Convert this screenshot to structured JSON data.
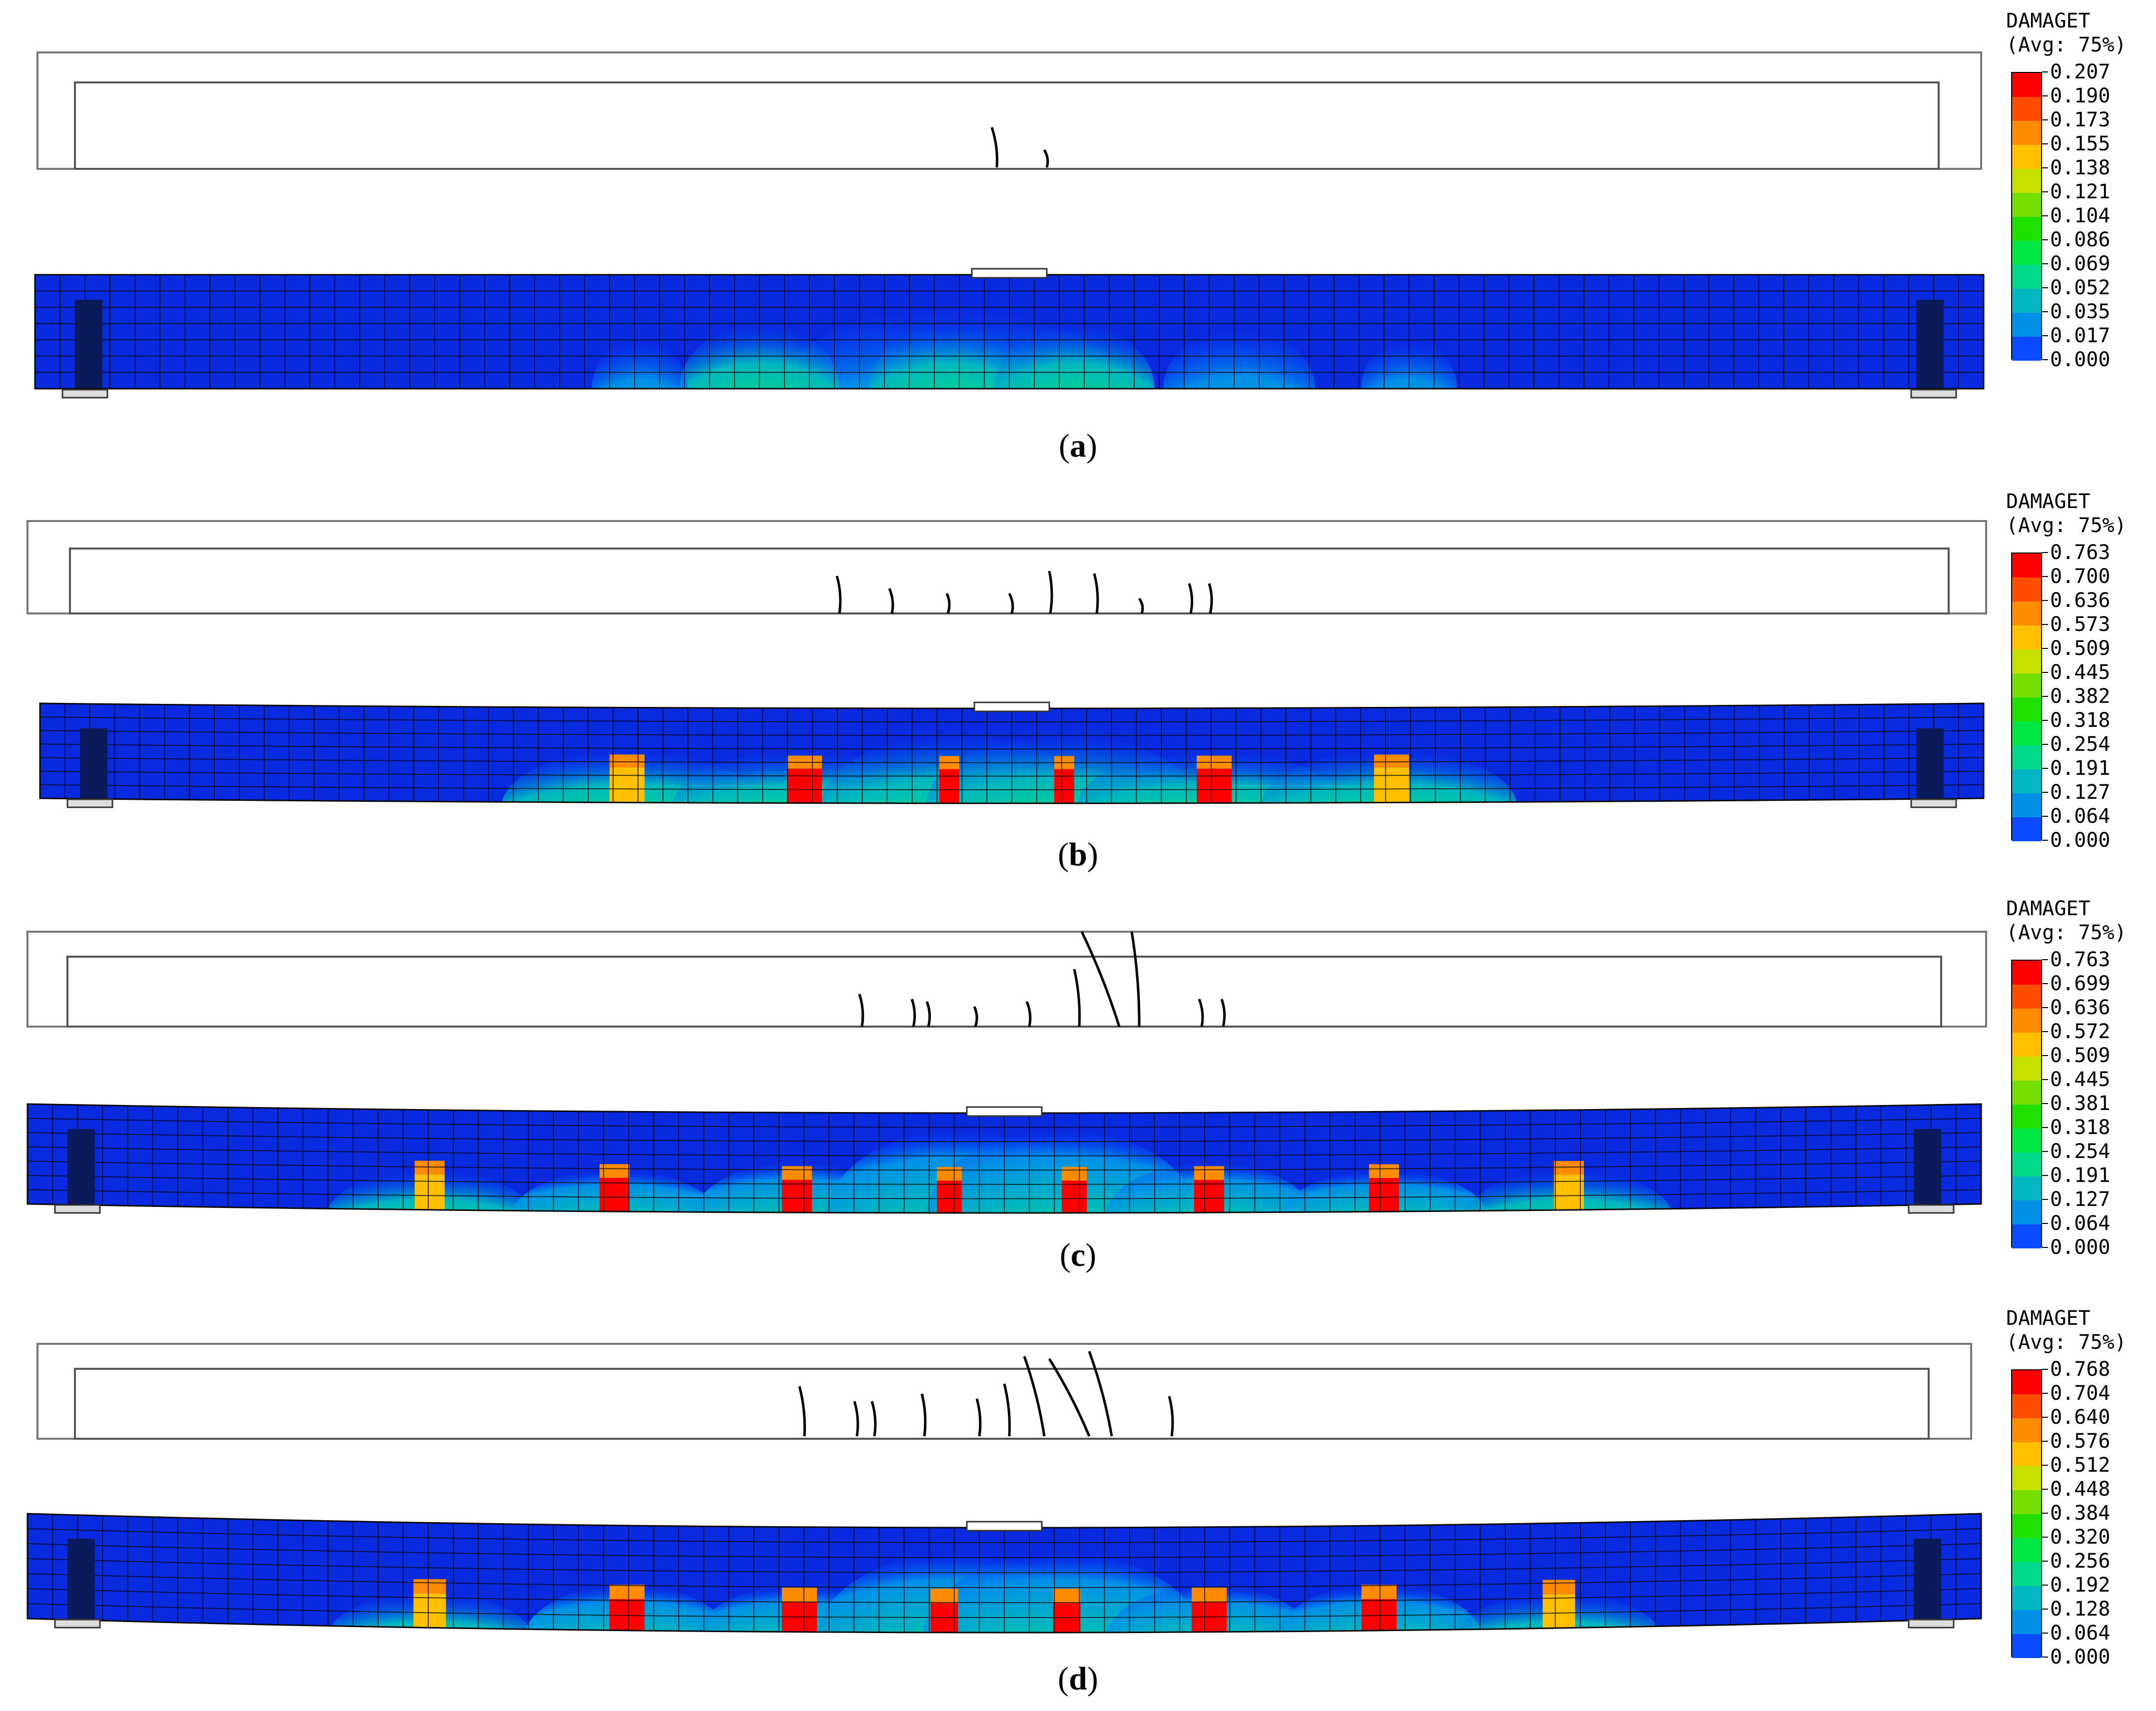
{
  "colors": {
    "contour": [
      "#0000ff",
      "#0a4bff",
      "#0090e8",
      "#00b6c0",
      "#00d98a",
      "#00e845",
      "#20e000",
      "#75e000",
      "#c8e000",
      "#ffc000",
      "#ff8c00",
      "#ff4d00",
      "#ff0000"
    ],
    "beam_base": "#0a2ae0",
    "mesh": "#0a0a0a",
    "crack": "#000000"
  },
  "panels": [
    {
      "id": "a",
      "caption_letter": "a",
      "legend": {
        "title": "DAMAGET",
        "subtitle": "(Avg: 75%)",
        "values": [
          "0.207",
          "0.190",
          "0.173",
          "0.155",
          "0.138",
          "0.121",
          "0.104",
          "0.086",
          "0.069",
          "0.052",
          "0.035",
          "0.017",
          "0.000"
        ]
      }
    },
    {
      "id": "b",
      "caption_letter": "b",
      "legend": {
        "title": "DAMAGET",
        "subtitle": "(Avg: 75%)",
        "values": [
          "0.763",
          "0.700",
          "0.636",
          "0.573",
          "0.509",
          "0.445",
          "0.382",
          "0.318",
          "0.254",
          "0.191",
          "0.127",
          "0.064",
          "0.000"
        ]
      }
    },
    {
      "id": "c",
      "caption_letter": "c",
      "legend": {
        "title": "DAMAGET",
        "subtitle": "(Avg: 75%)",
        "values": [
          "0.763",
          "0.699",
          "0.636",
          "0.572",
          "0.509",
          "0.445",
          "0.381",
          "0.318",
          "0.254",
          "0.191",
          "0.127",
          "0.064",
          "0.000"
        ]
      }
    },
    {
      "id": "d",
      "caption_letter": "d",
      "legend": {
        "title": "DAMAGET",
        "subtitle": "(Avg: 75%)",
        "values": [
          "0.768",
          "0.704",
          "0.640",
          "0.576",
          "0.512",
          "0.448",
          "0.384",
          "0.320",
          "0.256",
          "0.192",
          "0.128",
          "0.064",
          "0.000"
        ]
      }
    }
  ]
}
